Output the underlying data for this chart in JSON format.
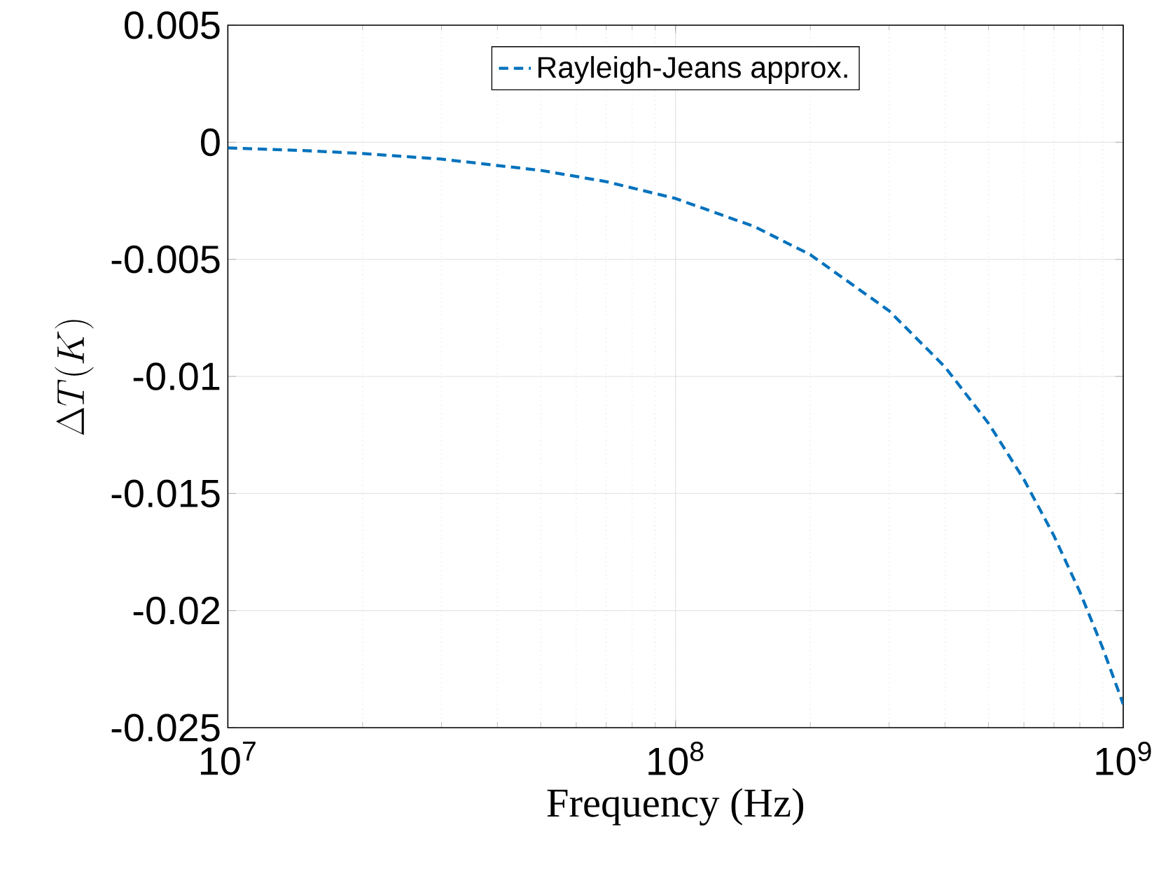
{
  "chart_data": {
    "type": "line",
    "xlabel": "Frequency (Hz)",
    "ylabel": "\\Delta T(K)",
    "x": [
      10000000.0,
      15000000.0,
      20000000.0,
      30000000.0,
      50000000.0,
      70000000.0,
      100000000.0,
      150000000.0,
      200000000.0,
      300000000.0,
      400000000.0,
      500000000.0,
      600000000.0,
      700000000.0,
      800000000.0,
      900000000.0,
      1000000000.0
    ],
    "series": [
      {
        "name": "Rayleigh-Jeans approx.",
        "color": "#0072bd",
        "line_style": "dashed",
        "marker": "none",
        "values": [
          -0.00024,
          -0.00036,
          -0.00048,
          -0.00072,
          -0.0012,
          -0.00168,
          -0.0024,
          -0.0036,
          -0.0048,
          -0.0072,
          -0.0096,
          -0.012,
          -0.0144,
          -0.0168,
          -0.0192,
          -0.0216,
          -0.024
        ]
      }
    ],
    "log": "x",
    "xlim": [
      10000000.0,
      1000000000.0
    ],
    "xticks": [
      {
        "value": 10000000.0,
        "label": "10$^{7}$"
      },
      {
        "value": 100000000.0,
        "label": "10$^{8}$"
      },
      {
        "value": 1000000000.0,
        "label": "10$^{9}$"
      }
    ],
    "ylim": [
      -0.025,
      0.005
    ],
    "yticks": [
      -0.025,
      -0.02,
      -0.015,
      -0.01,
      -0.005,
      0,
      0.005
    ],
    "grid": true,
    "legend": "top"
  }
}
